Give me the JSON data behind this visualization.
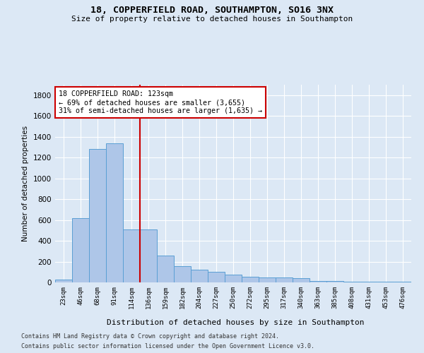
{
  "title_line1": "18, COPPERFIELD ROAD, SOUTHAMPTON, SO16 3NX",
  "title_line2": "Size of property relative to detached houses in Southampton",
  "xlabel": "Distribution of detached houses by size in Southampton",
  "ylabel": "Number of detached properties",
  "bar_color": "#aec6e8",
  "bar_edge_color": "#5a9fd4",
  "categories": [
    "23sqm",
    "46sqm",
    "68sqm",
    "91sqm",
    "114sqm",
    "136sqm",
    "159sqm",
    "182sqm",
    "204sqm",
    "227sqm",
    "250sqm",
    "272sqm",
    "295sqm",
    "317sqm",
    "340sqm",
    "363sqm",
    "385sqm",
    "408sqm",
    "431sqm",
    "453sqm",
    "476sqm"
  ],
  "values": [
    30,
    620,
    1280,
    1340,
    510,
    510,
    260,
    155,
    125,
    100,
    75,
    55,
    45,
    45,
    38,
    12,
    12,
    10,
    8,
    5,
    8
  ],
  "ylim": [
    0,
    1900
  ],
  "yticks": [
    0,
    200,
    400,
    600,
    800,
    1000,
    1200,
    1400,
    1600,
    1800
  ],
  "vline_x": 4.5,
  "annotation_text": "18 COPPERFIELD ROAD: 123sqm\n← 69% of detached houses are smaller (3,655)\n31% of semi-detached houses are larger (1,635) →",
  "annotation_box_color": "#ffffff",
  "annotation_box_edge": "#cc0000",
  "vline_color": "#cc0000",
  "footer_line1": "Contains HM Land Registry data © Crown copyright and database right 2024.",
  "footer_line2": "Contains public sector information licensed under the Open Government Licence v3.0.",
  "background_color": "#dce8f5",
  "grid_color": "#ffffff"
}
